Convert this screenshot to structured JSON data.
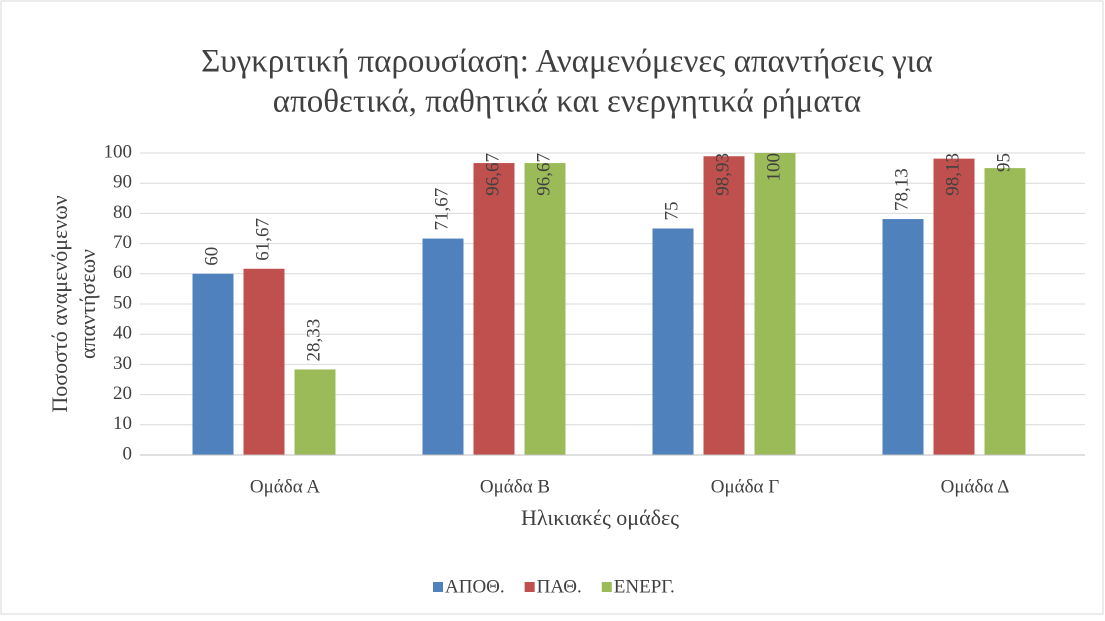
{
  "chart_data": {
    "type": "bar",
    "title": [
      "Συγκριτική παρουσίαση: Αναμενόμενες απαντήσεις για",
      "αποθετικά, παθητικά και ενεργητικά ρήματα"
    ],
    "x_label": "Ηλικιακές ομάδες",
    "y_label": [
      "Ποσοστό αναμενόμενων",
      "απαντήσεων"
    ],
    "categories": [
      "Ομάδα Α",
      "Ομάδα Β",
      "Ομάδα Γ",
      "Ομάδα Δ"
    ],
    "series": [
      {
        "name": "ΑΠΟΘ.",
        "color": "#4f81bd",
        "values": [
          60,
          71.67,
          75,
          78.13
        ],
        "value_labels": [
          "60",
          "71,67",
          "75",
          "78,13"
        ]
      },
      {
        "name": "ΠΑΘ.",
        "color": "#c0504d",
        "values": [
          61.67,
          96.67,
          98.93,
          98.13
        ],
        "value_labels": [
          "61,67",
          "96,67",
          "98,93",
          "98,13"
        ]
      },
      {
        "name": "ΕΝΕΡΓ.",
        "color": "#9bbb59",
        "values": [
          28.33,
          96.67,
          100,
          95
        ],
        "value_labels": [
          "28,33",
          "96,67",
          "100",
          "95"
        ]
      }
    ],
    "ylim": [
      0,
      100
    ],
    "yticks": [
      0,
      10,
      20,
      30,
      40,
      50,
      60,
      70,
      80,
      90,
      100
    ],
    "grid": true,
    "legend": "bottom"
  }
}
